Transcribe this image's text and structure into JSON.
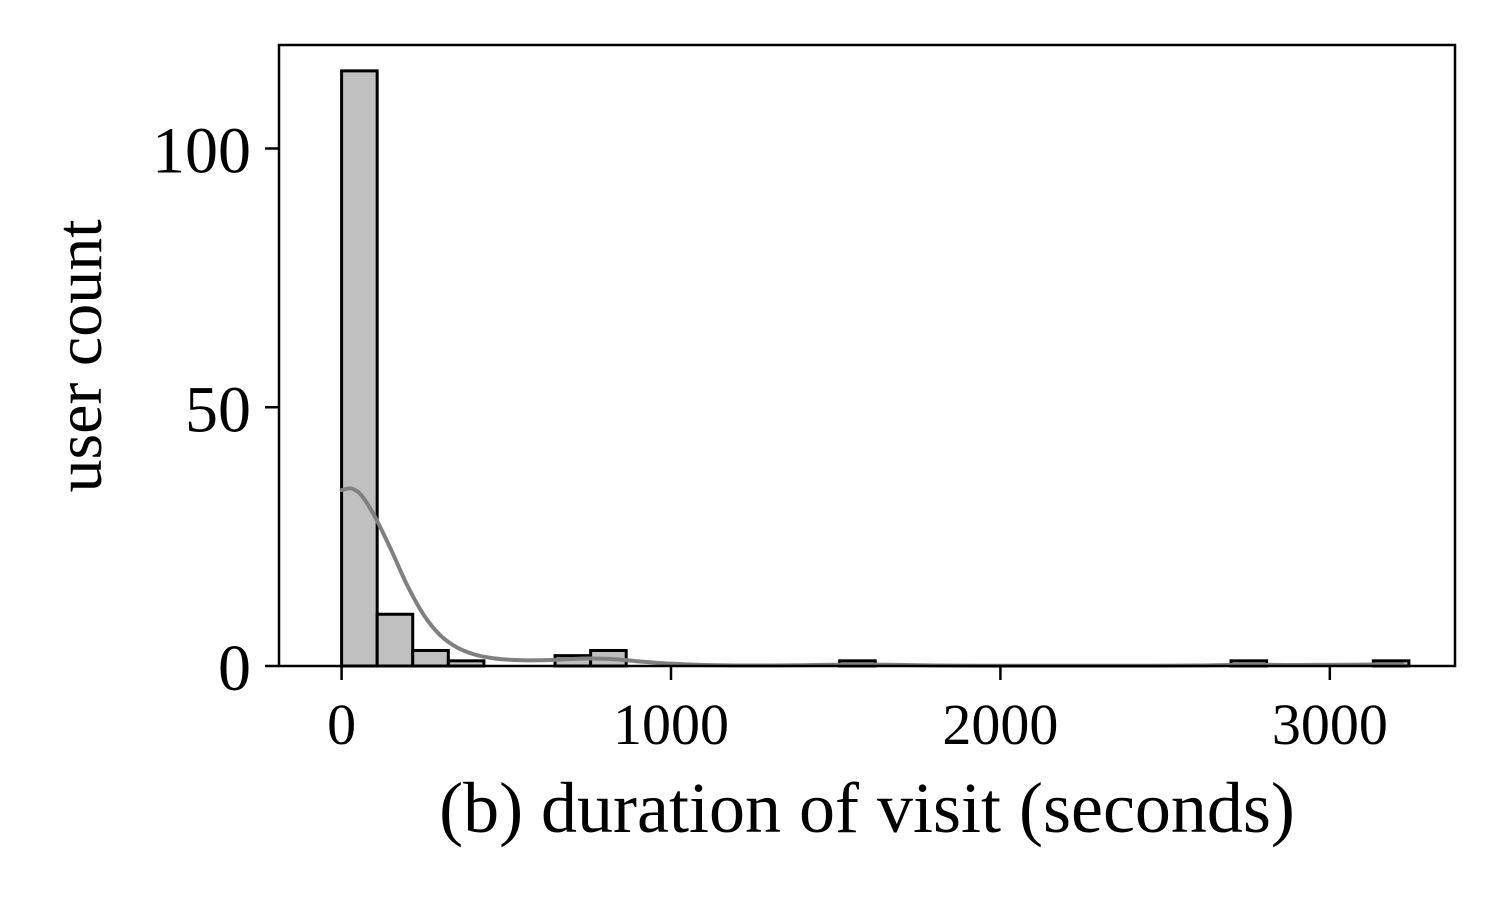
{
  "chart_data": {
    "type": "bar",
    "subtype": "histogram",
    "title": "",
    "xlabel": "(b) duration of visit (seconds)",
    "ylabel": "user count",
    "xlim": [
      -190,
      3380
    ],
    "ylim": [
      0,
      120
    ],
    "xticks": [
      0,
      1000,
      2000,
      3000
    ],
    "xtick_labels": [
      "0",
      "1000",
      "2000",
      "3000"
    ],
    "yticks": [
      0,
      50,
      100
    ],
    "ytick_labels": [
      "0",
      "50",
      "100"
    ],
    "grid": false,
    "legend": "none",
    "bar_color": "#c0c0c0",
    "bar_edge_color": "#000000",
    "kde_color": "#808080",
    "bins": [
      {
        "start": 0,
        "end": 108,
        "count": 115
      },
      {
        "start": 108,
        "end": 216,
        "count": 10
      },
      {
        "start": 216,
        "end": 324,
        "count": 3
      },
      {
        "start": 324,
        "end": 432,
        "count": 1
      },
      {
        "start": 648,
        "end": 756,
        "count": 2
      },
      {
        "start": 756,
        "end": 864,
        "count": 3
      },
      {
        "start": 1512,
        "end": 1620,
        "count": 1
      },
      {
        "start": 2700,
        "end": 2808,
        "count": 1
      },
      {
        "start": 3132,
        "end": 3240,
        "count": 1
      }
    ],
    "kde": {
      "x": [
        0,
        30,
        60,
        100,
        150,
        200,
        250,
        300,
        350,
        400,
        450,
        500,
        550,
        600,
        650,
        700,
        750,
        800,
        850,
        900,
        1000,
        1100,
        1200,
        1300,
        1400,
        1500,
        1560,
        1650,
        1800,
        2000,
        2200,
        2400,
        2600,
        2750,
        2900,
        3050,
        3150,
        3220
      ],
      "y": [
        34,
        34.3,
        33,
        29,
        22.5,
        15.5,
        9.8,
        5.9,
        3.6,
        2.3,
        1.6,
        1.25,
        1.1,
        1.1,
        1.2,
        1.35,
        1.45,
        1.4,
        1.2,
        0.9,
        0.45,
        0.2,
        0.1,
        0.1,
        0.15,
        0.25,
        0.3,
        0.25,
        0.1,
        0.05,
        0.05,
        0.05,
        0.1,
        0.25,
        0.2,
        0.25,
        0.3,
        0.3
      ]
    }
  }
}
